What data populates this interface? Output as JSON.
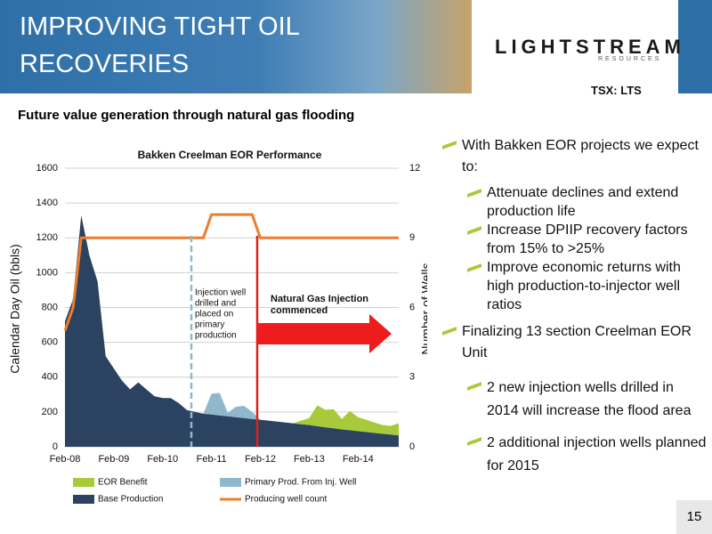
{
  "slide": {
    "title_lines": [
      "IMPROVING TIGHT OIL",
      "RECOVERIES"
    ],
    "logo": "LIGHTSTREAM",
    "logo_sub": "RESOURCES",
    "ticker": "TSX: LTS",
    "subtitle": "Future value generation through natural gas flooding",
    "page": "15",
    "bullets": [
      {
        "text": "With Bakken EOR projects we expect to:",
        "sub": [
          "Attenuate declines and extend production life",
          "Increase DPIIP recovery factors from 15% to >25%",
          "Improve economic returns with high production-to-injector well ratios"
        ]
      },
      {
        "text": "Finalizing 13 section Creelman EOR Unit",
        "sub": [
          "2 new injection wells drilled in 2014 will increase the flood area",
          "2 additional injection wells planned for 2015"
        ]
      }
    ]
  },
  "chart_data": {
    "type": "stacked_area",
    "title": "Bakken Creelman EOR Performance",
    "y_label": "Calendar Day Oil (bbls)",
    "y2_label": "Number of Wells",
    "annotations": [
      [
        "Injection well",
        "drilled and",
        "placed on",
        "primary",
        "production"
      ],
      [
        "Natural Gas Injection",
        "commenced"
      ]
    ],
    "categories": [
      "Feb-08",
      null,
      null,
      null,
      null,
      null,
      "Feb-09",
      null,
      null,
      null,
      null,
      null,
      "Feb-10",
      null,
      null,
      null,
      null,
      null,
      "Feb-11",
      null,
      null,
      null,
      null,
      null,
      "Feb-12",
      null,
      null,
      null,
      null,
      null,
      "Feb-13",
      null,
      null,
      null,
      null,
      null,
      "Feb-14",
      null,
      null,
      null,
      null,
      null
    ],
    "ylim": [
      0,
      1600
    ],
    "yticks": [
      0,
      200,
      400,
      600,
      800,
      1000,
      1200,
      1400,
      1600
    ],
    "y2lim": [
      0,
      12
    ],
    "y2ticks": [
      0,
      3,
      6,
      9,
      12
    ],
    "series": [
      {
        "name": "Base Production",
        "color": "#2b4260",
        "values": [
          720,
          850,
          1330,
          1100,
          950,
          520,
          450,
          380,
          330,
          370,
          330,
          290,
          280,
          280,
          250,
          210,
          200,
          190,
          185,
          180,
          175,
          170,
          165,
          160,
          155,
          150,
          145,
          140,
          135,
          130,
          125,
          118,
          112,
          106,
          100,
          95,
          90,
          85,
          80,
          75,
          70,
          65
        ]
      },
      {
        "name": "Primary Prod. From Inj. Well",
        "color": "#8fb8cc",
        "values": [
          0,
          0,
          0,
          0,
          0,
          0,
          0,
          0,
          0,
          0,
          0,
          0,
          0,
          0,
          0,
          0,
          0,
          0,
          120,
          130,
          20,
          60,
          70,
          40,
          0,
          0,
          0,
          0,
          0,
          0,
          0,
          0,
          0,
          0,
          0,
          0,
          0,
          0,
          0,
          0,
          0,
          0
        ]
      },
      {
        "name": "EOR Benefit",
        "color": "#a8c93a",
        "values": [
          0,
          0,
          0,
          0,
          0,
          0,
          0,
          0,
          0,
          0,
          0,
          0,
          0,
          0,
          0,
          0,
          0,
          0,
          0,
          0,
          0,
          0,
          0,
          0,
          0,
          0,
          0,
          0,
          0,
          20,
          40,
          120,
          100,
          110,
          60,
          110,
          80,
          70,
          60,
          50,
          50,
          70
        ]
      },
      {
        "name": "Producing well count",
        "color": "#ee7d2a",
        "axis": "y2",
        "kind": "line",
        "values": [
          5,
          6,
          9,
          9,
          9,
          9,
          9,
          9,
          9,
          9,
          9,
          9,
          9,
          9,
          9,
          9,
          9,
          9,
          10,
          10,
          10,
          10,
          10,
          10,
          9,
          9,
          9,
          9,
          9,
          9,
          9,
          9,
          9,
          9,
          9,
          9,
          9,
          9,
          9,
          9,
          9,
          9
        ]
      }
    ],
    "legend_order": [
      2,
      1,
      0,
      3
    ]
  }
}
